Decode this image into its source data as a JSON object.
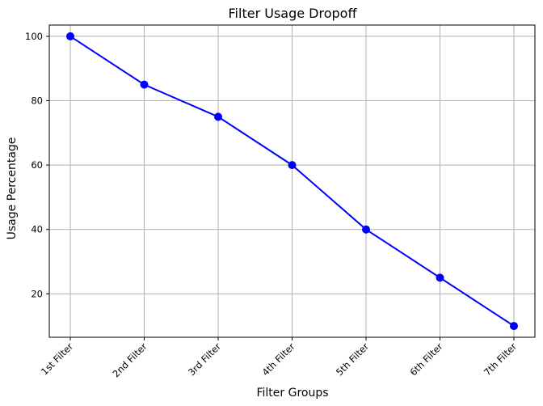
{
  "chart_data": {
    "type": "line",
    "title": "Filter Usage Dropoff",
    "xlabel": "Filter Groups",
    "ylabel": "Usage Percentage",
    "categories": [
      "1st Filter",
      "2nd Filter",
      "3rd Filter",
      "4th Filter",
      "5th Filter",
      "6th Filter",
      "7th Filter"
    ],
    "series": [
      {
        "values": [
          100,
          85,
          75,
          60,
          40,
          25,
          10
        ],
        "color": "#0000ff",
        "marker": "circle"
      }
    ],
    "ylim": [
      6.5,
      103.5
    ],
    "yticks": [
      20,
      40,
      60,
      80,
      100
    ],
    "grid": true,
    "tick_label_rotation": -45
  }
}
